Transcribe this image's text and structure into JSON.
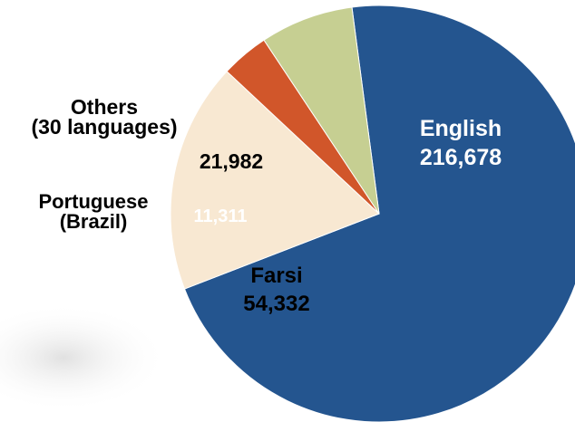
{
  "chart_data": {
    "type": "pie",
    "title": "",
    "slices": [
      {
        "label_lines": [
          "English"
        ],
        "value": 216678,
        "value_label": "216,678",
        "color": "#24558f",
        "text_color": "#ffffff"
      },
      {
        "label_lines": [
          "Farsi"
        ],
        "value": 54332,
        "value_label": "54,332",
        "color": "#f8e8d2",
        "text_color": "#000000"
      },
      {
        "label_lines": [
          "Portuguese",
          "(Brazil)"
        ],
        "value": 11311,
        "value_label": "11,311",
        "color": "#d1562a",
        "text_color": "#ffffff"
      },
      {
        "label_lines": [
          "Others",
          "(30 languages)"
        ],
        "value": 21982,
        "value_label": "21,982",
        "color": "#c6cf92",
        "text_color": "#000000"
      }
    ],
    "legend": "none",
    "label_placement": "mixed: English and Farsi names inside their slices; Portuguese (Brazil) and Others names outside to the left"
  }
}
